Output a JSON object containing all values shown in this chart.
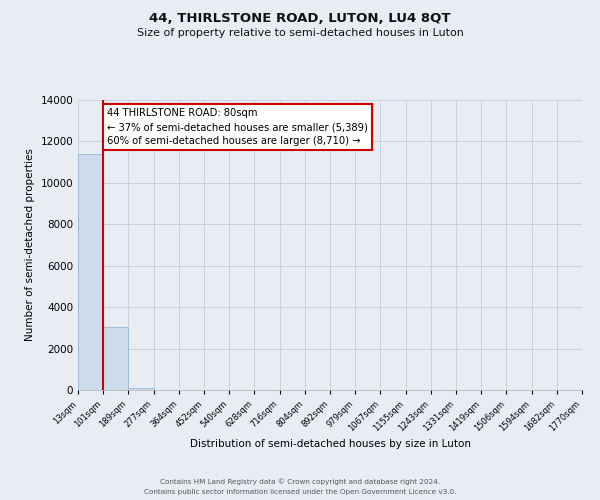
{
  "title": "44, THIRLSTONE ROAD, LUTON, LU4 8QT",
  "subtitle": "Size of property relative to semi-detached houses in Luton",
  "xlabel": "Distribution of semi-detached houses by size in Luton",
  "ylabel": "Number of semi-detached properties",
  "bar_values": [
    11400,
    3050,
    120,
    0,
    0,
    0,
    0,
    0,
    0,
    0,
    0,
    0,
    0,
    0,
    0,
    0,
    0,
    0,
    0,
    0
  ],
  "bin_labels": [
    "13sqm",
    "101sqm",
    "189sqm",
    "277sqm",
    "364sqm",
    "452sqm",
    "540sqm",
    "628sqm",
    "716sqm",
    "804sqm",
    "892sqm",
    "979sqm",
    "1067sqm",
    "1155sqm",
    "1243sqm",
    "1331sqm",
    "1419sqm",
    "1506sqm",
    "1594sqm",
    "1682sqm",
    "1770sqm"
  ],
  "bar_color": "#ccdcec",
  "bar_edge_color": "#8ab0cc",
  "ylim": [
    0,
    14000
  ],
  "yticks": [
    0,
    2000,
    4000,
    6000,
    8000,
    10000,
    12000,
    14000
  ],
  "red_line_x": 1,
  "annotation_title": "44 THIRLSTONE ROAD: 80sqm",
  "annotation_line1": "← 37% of semi-detached houses are smaller (5,389)",
  "annotation_line2": "60% of semi-detached houses are larger (8,710) →",
  "annotation_box_color": "#ffffff",
  "annotation_box_edge": "#cc0000",
  "red_line_color": "#cc0000",
  "grid_color": "#c8d0dc",
  "background_color": "#e8edf4",
  "footer_line1": "Contains HM Land Registry data © Crown copyright and database right 2024.",
  "footer_line2": "Contains public sector information licensed under the Open Government Licence v3.0."
}
